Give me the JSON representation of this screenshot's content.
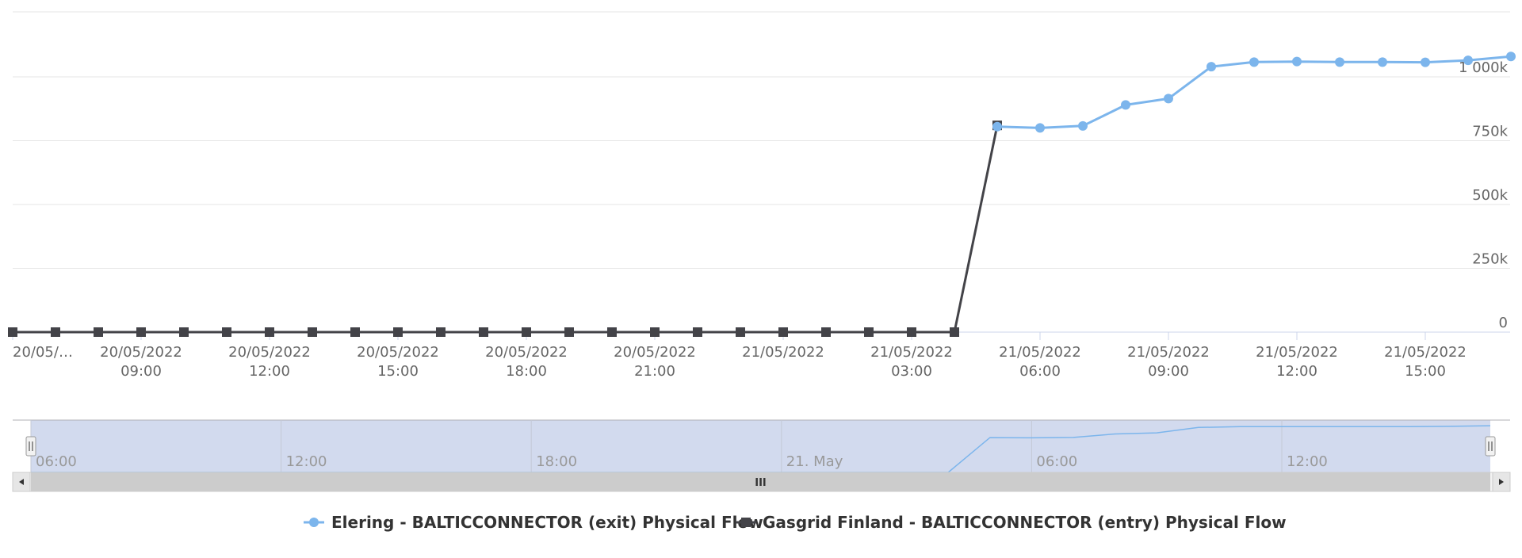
{
  "colors": {
    "series_exit": "#7cb5ec",
    "series_entry": "#434348",
    "grid": "#e6e6e6",
    "axis": "#ccd6eb",
    "navigator_mask": "#d2daee",
    "scrollbar_track": "#f2f2f2",
    "scrollbar_thumb": "#cccccc"
  },
  "chart_data": {
    "type": "line",
    "title": "",
    "xlabel": "",
    "ylabel": "",
    "ylim": [
      0,
      1000000
    ],
    "y_ticks": [
      {
        "value": 0,
        "label": "0"
      },
      {
        "value": 250000,
        "label": "250k"
      },
      {
        "value": 500000,
        "label": "500k"
      },
      {
        "value": 750000,
        "label": "750k"
      },
      {
        "value": 1000000,
        "label": "1 000k"
      }
    ],
    "x_ticks": [
      {
        "x": "2022-05-20T06:00",
        "label": [
          "20/05/…",
          ""
        ]
      },
      {
        "x": "2022-05-20T09:00",
        "label": [
          "20/05/2022",
          "09:00"
        ]
      },
      {
        "x": "2022-05-20T12:00",
        "label": [
          "20/05/2022",
          "12:00"
        ]
      },
      {
        "x": "2022-05-20T15:00",
        "label": [
          "20/05/2022",
          "15:00"
        ]
      },
      {
        "x": "2022-05-20T18:00",
        "label": [
          "20/05/2022",
          "18:00"
        ]
      },
      {
        "x": "2022-05-20T21:00",
        "label": [
          "20/05/2022",
          "21:00"
        ]
      },
      {
        "x": "2022-05-21T00:00",
        "label": [
          "21/05/2022",
          ""
        ]
      },
      {
        "x": "2022-05-21T03:00",
        "label": [
          "21/05/2022",
          "03:00"
        ]
      },
      {
        "x": "2022-05-21T06:00",
        "label": [
          "21/05/2022",
          "06:00"
        ]
      },
      {
        "x": "2022-05-21T09:00",
        "label": [
          "21/05/2022",
          "09:00"
        ]
      },
      {
        "x": "2022-05-21T12:00",
        "label": [
          "21/05/2022",
          "12:00"
        ]
      },
      {
        "x": "2022-05-21T15:00",
        "label": [
          "21/05/2022",
          "15:00"
        ]
      }
    ],
    "series": [
      {
        "name": "Elering - BALTICCONNECTOR (exit) Physical Flow",
        "marker": "circle",
        "color": "#7cb5ec",
        "points": [
          {
            "x": "2022-05-21T05:00",
            "y": 805000
          },
          {
            "x": "2022-05-21T06:00",
            "y": 800000
          },
          {
            "x": "2022-05-21T07:00",
            "y": 808000
          },
          {
            "x": "2022-05-21T08:00",
            "y": 890000
          },
          {
            "x": "2022-05-21T09:00",
            "y": 915000
          },
          {
            "x": "2022-05-21T10:00",
            "y": 1040000
          },
          {
            "x": "2022-05-21T11:00",
            "y": 1058000
          },
          {
            "x": "2022-05-21T12:00",
            "y": 1060000
          },
          {
            "x": "2022-05-21T13:00",
            "y": 1058000
          },
          {
            "x": "2022-05-21T14:00",
            "y": 1058000
          },
          {
            "x": "2022-05-21T15:00",
            "y": 1057000
          },
          {
            "x": "2022-05-21T16:00",
            "y": 1065000
          },
          {
            "x": "2022-05-21T17:00",
            "y": 1080000
          }
        ]
      },
      {
        "name": "Gasgrid Finland - BALTICCONNECTOR (entry) Physical Flow",
        "marker": "square",
        "color": "#434348",
        "points": [
          {
            "x": "2022-05-20T06:00",
            "y": 0
          },
          {
            "x": "2022-05-20T07:00",
            "y": 0
          },
          {
            "x": "2022-05-20T08:00",
            "y": 0
          },
          {
            "x": "2022-05-20T09:00",
            "y": 0
          },
          {
            "x": "2022-05-20T10:00",
            "y": 0
          },
          {
            "x": "2022-05-20T11:00",
            "y": 0
          },
          {
            "x": "2022-05-20T12:00",
            "y": 0
          },
          {
            "x": "2022-05-20T13:00",
            "y": 0
          },
          {
            "x": "2022-05-20T14:00",
            "y": 0
          },
          {
            "x": "2022-05-20T15:00",
            "y": 0
          },
          {
            "x": "2022-05-20T16:00",
            "y": 0
          },
          {
            "x": "2022-05-20T17:00",
            "y": 0
          },
          {
            "x": "2022-05-20T18:00",
            "y": 0
          },
          {
            "x": "2022-05-20T19:00",
            "y": 0
          },
          {
            "x": "2022-05-20T20:00",
            "y": 0
          },
          {
            "x": "2022-05-20T21:00",
            "y": 0
          },
          {
            "x": "2022-05-20T22:00",
            "y": 0
          },
          {
            "x": "2022-05-20T23:00",
            "y": 0
          },
          {
            "x": "2022-05-21T00:00",
            "y": 0
          },
          {
            "x": "2022-05-21T01:00",
            "y": 0
          },
          {
            "x": "2022-05-21T02:00",
            "y": 0
          },
          {
            "x": "2022-05-21T03:00",
            "y": 0
          },
          {
            "x": "2022-05-21T04:00",
            "y": 0
          },
          {
            "x": "2022-05-21T05:00",
            "y": 810000
          }
        ]
      }
    ],
    "grid": true,
    "legend": "bottom-center"
  },
  "navigator": {
    "labels": [
      {
        "x": "2022-05-20T06:00",
        "label": "06:00"
      },
      {
        "x": "2022-05-20T12:00",
        "label": "12:00"
      },
      {
        "x": "2022-05-20T18:00",
        "label": "18:00"
      },
      {
        "x": "2022-05-21T00:00",
        "label": "21. May"
      },
      {
        "x": "2022-05-21T06:00",
        "label": "06:00"
      },
      {
        "x": "2022-05-21T12:00",
        "label": "12:00"
      }
    ],
    "selected_range": [
      "2022-05-20T06:00",
      "2022-05-21T17:00"
    ],
    "thumb_grip": "III"
  },
  "legend": {
    "items": [
      {
        "label": "Elering - BALTICCONNECTOR (exit) Physical Flow"
      },
      {
        "label": "Gasgrid Finland - BALTICCONNECTOR (entry) Physical Flow"
      }
    ]
  }
}
